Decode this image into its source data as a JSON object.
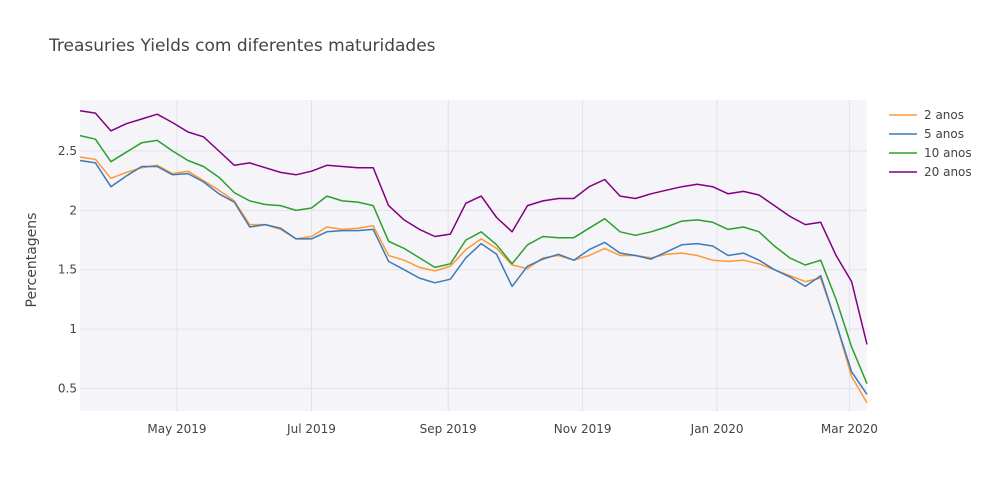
{
  "chart_data": {
    "type": "line",
    "title": "Treasuries Yields com diferentes maturidades",
    "xlabel": "",
    "ylabel": "Percentagens",
    "x_range": [
      "2019-03-18",
      "2020-03-09"
    ],
    "ylim": [
      0.31,
      2.93
    ],
    "grid": true,
    "legend_position": "top-right",
    "x_ticks": [
      {
        "date": "2019-05-01",
        "label": "May 2019"
      },
      {
        "date": "2019-07-01",
        "label": "Jul 2019"
      },
      {
        "date": "2019-09-01",
        "label": "Sep 2019"
      },
      {
        "date": "2019-11-01",
        "label": "Nov 2019"
      },
      {
        "date": "2020-01-01",
        "label": "Jan 2020"
      },
      {
        "date": "2020-03-01",
        "label": "Mar 2020"
      }
    ],
    "y_ticks": [
      {
        "value": 0.5,
        "label": "0.5"
      },
      {
        "value": 1,
        "label": "1"
      },
      {
        "value": 1.5,
        "label": "1.5"
      },
      {
        "value": 2,
        "label": "2"
      },
      {
        "value": 2.5,
        "label": "2.5"
      }
    ],
    "x": [
      "2019-03-18",
      "2019-03-25",
      "2019-04-01",
      "2019-04-08",
      "2019-04-15",
      "2019-04-22",
      "2019-04-29",
      "2019-05-06",
      "2019-05-13",
      "2019-05-20",
      "2019-05-27",
      "2019-06-03",
      "2019-06-10",
      "2019-06-17",
      "2019-06-24",
      "2019-07-01",
      "2019-07-08",
      "2019-07-15",
      "2019-07-22",
      "2019-07-29",
      "2019-08-05",
      "2019-08-12",
      "2019-08-19",
      "2019-08-26",
      "2019-09-02",
      "2019-09-09",
      "2019-09-16",
      "2019-09-23",
      "2019-09-30",
      "2019-10-07",
      "2019-10-14",
      "2019-10-21",
      "2019-10-28",
      "2019-11-04",
      "2019-11-11",
      "2019-11-18",
      "2019-11-25",
      "2019-12-02",
      "2019-12-09",
      "2019-12-16",
      "2019-12-23",
      "2019-12-30",
      "2020-01-06",
      "2020-01-13",
      "2020-01-20",
      "2020-01-27",
      "2020-02-03",
      "2020-02-10",
      "2020-02-17",
      "2020-02-24",
      "2020-03-02",
      "2020-03-09"
    ],
    "series": [
      {
        "name": "2 anos",
        "color": "#ff9933",
        "values": [
          2.45,
          2.43,
          2.27,
          2.32,
          2.36,
          2.38,
          2.31,
          2.33,
          2.25,
          2.17,
          2.08,
          1.88,
          1.88,
          1.84,
          1.76,
          1.78,
          1.86,
          1.84,
          1.85,
          1.87,
          1.62,
          1.58,
          1.52,
          1.49,
          1.53,
          1.67,
          1.76,
          1.68,
          1.54,
          1.51,
          1.6,
          1.62,
          1.58,
          1.62,
          1.68,
          1.62,
          1.62,
          1.6,
          1.63,
          1.64,
          1.62,
          1.58,
          1.57,
          1.58,
          1.55,
          1.5,
          1.45,
          1.4,
          1.43,
          1.05,
          0.6,
          0.38
        ]
      },
      {
        "name": "5 anos",
        "color": "#3d7ab8",
        "values": [
          2.42,
          2.4,
          2.2,
          2.29,
          2.37,
          2.37,
          2.3,
          2.31,
          2.24,
          2.14,
          2.07,
          1.86,
          1.88,
          1.85,
          1.76,
          1.76,
          1.82,
          1.83,
          1.83,
          1.84,
          1.57,
          1.5,
          1.43,
          1.39,
          1.42,
          1.6,
          1.72,
          1.63,
          1.36,
          1.53,
          1.59,
          1.63,
          1.58,
          1.67,
          1.73,
          1.64,
          1.62,
          1.59,
          1.65,
          1.71,
          1.72,
          1.7,
          1.62,
          1.64,
          1.58,
          1.5,
          1.44,
          1.36,
          1.45,
          1.05,
          0.64,
          0.45
        ]
      },
      {
        "name": "10 anos",
        "color": "#2ca02c",
        "values": [
          2.63,
          2.6,
          2.41,
          2.49,
          2.57,
          2.59,
          2.5,
          2.42,
          2.37,
          2.28,
          2.15,
          2.08,
          2.05,
          2.04,
          2.0,
          2.02,
          2.12,
          2.08,
          2.07,
          2.04,
          1.74,
          1.68,
          1.6,
          1.52,
          1.55,
          1.75,
          1.82,
          1.71,
          1.55,
          1.71,
          1.78,
          1.77,
          1.77,
          1.85,
          1.93,
          1.82,
          1.79,
          1.82,
          1.86,
          1.91,
          1.92,
          1.9,
          1.84,
          1.86,
          1.82,
          1.7,
          1.6,
          1.54,
          1.58,
          1.25,
          0.85,
          0.54
        ]
      },
      {
        "name": "20 anos",
        "color": "#800080",
        "values": [
          2.84,
          2.82,
          2.67,
          2.73,
          2.77,
          2.81,
          2.74,
          2.66,
          2.62,
          2.5,
          2.38,
          2.4,
          2.36,
          2.32,
          2.3,
          2.33,
          2.38,
          2.37,
          2.36,
          2.36,
          2.04,
          1.92,
          1.84,
          1.78,
          1.8,
          2.06,
          2.12,
          1.94,
          1.82,
          2.04,
          2.08,
          2.1,
          2.1,
          2.2,
          2.26,
          2.12,
          2.1,
          2.14,
          2.17,
          2.2,
          2.22,
          2.2,
          2.14,
          2.16,
          2.13,
          2.04,
          1.95,
          1.88,
          1.9,
          1.62,
          1.4,
          0.87
        ]
      }
    ]
  }
}
